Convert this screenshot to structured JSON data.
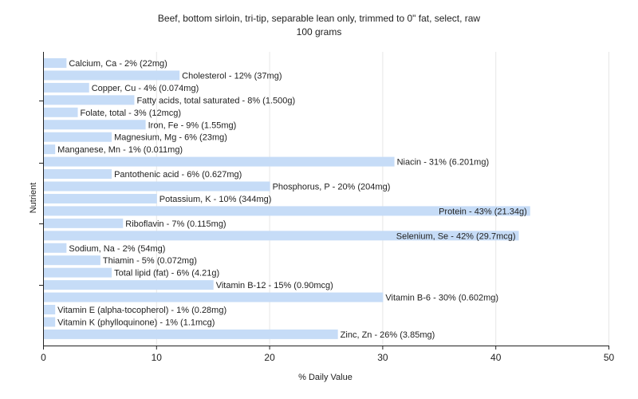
{
  "chart_data": {
    "type": "bar",
    "orientation": "horizontal",
    "title": "Beef, bottom sirloin, tri-tip, separable lean only, trimmed to 0\" fat, select, raw",
    "subtitle": "100 grams",
    "xlabel": "% Daily Value",
    "ylabel": "Nutrient",
    "xlim": [
      0,
      50
    ],
    "xticks": [
      0,
      10,
      20,
      30,
      40,
      50
    ],
    "grid": true,
    "colors": {
      "bar": "#c6dcf7",
      "grid": "#e6e6e6",
      "axis": "#222222"
    },
    "categories": [
      "Calcium, Ca",
      "Cholesterol",
      "Copper, Cu",
      "Fatty acids, total saturated",
      "Folate, total",
      "Iron, Fe",
      "Magnesium, Mg",
      "Manganese, Mn",
      "Niacin",
      "Pantothenic acid",
      "Phosphorus, P",
      "Potassium, K",
      "Protein",
      "Riboflavin",
      "Selenium, Se",
      "Sodium, Na",
      "Thiamin",
      "Total lipid (fat)",
      "Vitamin B-12",
      "Vitamin B-6",
      "Vitamin E (alpha-tocopherol)",
      "Vitamin K (phylloquinone)",
      "Zinc, Zn"
    ],
    "values": [
      2,
      12,
      4,
      8,
      3,
      9,
      6,
      1,
      31,
      6,
      20,
      10,
      43,
      7,
      42,
      2,
      5,
      6,
      15,
      30,
      1,
      1,
      26
    ],
    "labels": [
      "Calcium, Ca - 2% (22mg)",
      "Cholesterol - 12% (37mg)",
      "Copper, Cu - 4% (0.074mg)",
      "Fatty acids, total saturated - 8% (1.500g)",
      "Folate, total - 3% (12mcg)",
      "Iron, Fe - 9% (1.55mg)",
      "Magnesium, Mg - 6% (23mg)",
      "Manganese, Mn - 1% (0.011mg)",
      "Niacin - 31% (6.201mg)",
      "Pantothenic acid - 6% (0.627mg)",
      "Phosphorus, P - 20% (204mg)",
      "Potassium, K - 10% (344mg)",
      "Protein - 43% (21.34g)",
      "Riboflavin - 7% (0.115mg)",
      "Selenium, Se - 42% (29.7mcg)",
      "Sodium, Na - 2% (54mg)",
      "Thiamin - 5% (0.072mg)",
      "Total lipid (fat) - 6% (4.21g)",
      "Vitamin B-12 - 15% (0.90mcg)",
      "Vitamin B-6 - 30% (0.602mg)",
      "Vitamin E (alpha-tocopherol) - 1% (0.28mg)",
      "Vitamin K (phylloquinone) - 1% (1.1mcg)",
      "Zinc, Zn - 26% (3.85mg)"
    ]
  }
}
